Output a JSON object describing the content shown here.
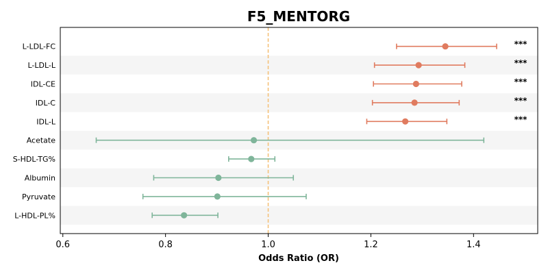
{
  "chart_data": {
    "type": "forest",
    "title": "F5_MENTORG",
    "xlabel": "Odds Ratio (OR)",
    "ylabel": "",
    "xlim": [
      0.595,
      1.525
    ],
    "xticks": [
      0.6,
      0.8,
      1.0,
      1.2,
      1.4
    ],
    "xtick_labels": [
      "0.6",
      "0.8",
      "1.0",
      "1.2",
      "1.4"
    ],
    "reference_line": 1.0,
    "grid": false,
    "row_shading": "alternating",
    "colors": {
      "significant": "#E07B5F",
      "nonsignificant": "#7FB59A",
      "reference": "#F5C27A",
      "stripe": "#F5F5F5"
    },
    "rows": [
      {
        "label": "L-LDL-FC",
        "or": 1.345,
        "lo": 1.25,
        "hi": 1.445,
        "sig": "***",
        "group": "significant"
      },
      {
        "label": "L-LDL-L",
        "or": 1.293,
        "lo": 1.207,
        "hi": 1.383,
        "sig": "***",
        "group": "significant"
      },
      {
        "label": "IDL-CE",
        "or": 1.288,
        "lo": 1.205,
        "hi": 1.377,
        "sig": "***",
        "group": "significant"
      },
      {
        "label": "IDL-C",
        "or": 1.285,
        "lo": 1.203,
        "hi": 1.372,
        "sig": "***",
        "group": "significant"
      },
      {
        "label": "IDL-L",
        "or": 1.267,
        "lo": 1.192,
        "hi": 1.348,
        "sig": "***",
        "group": "significant"
      },
      {
        "label": "Acetate",
        "or": 0.972,
        "lo": 0.665,
        "hi": 1.42,
        "sig": "",
        "group": "nonsignificant"
      },
      {
        "label": "S-HDL-TG%",
        "or": 0.967,
        "lo": 0.923,
        "hi": 1.013,
        "sig": "",
        "group": "nonsignificant"
      },
      {
        "label": "Albumin",
        "or": 0.903,
        "lo": 0.777,
        "hi": 1.049,
        "sig": "",
        "group": "nonsignificant"
      },
      {
        "label": "Pyruvate",
        "or": 0.901,
        "lo": 0.756,
        "hi": 1.074,
        "sig": "",
        "group": "nonsignificant"
      },
      {
        "label": "L-HDL-PL%",
        "or": 0.836,
        "lo": 0.774,
        "hi": 0.902,
        "sig": "",
        "group": "nonsignificant"
      }
    ]
  }
}
